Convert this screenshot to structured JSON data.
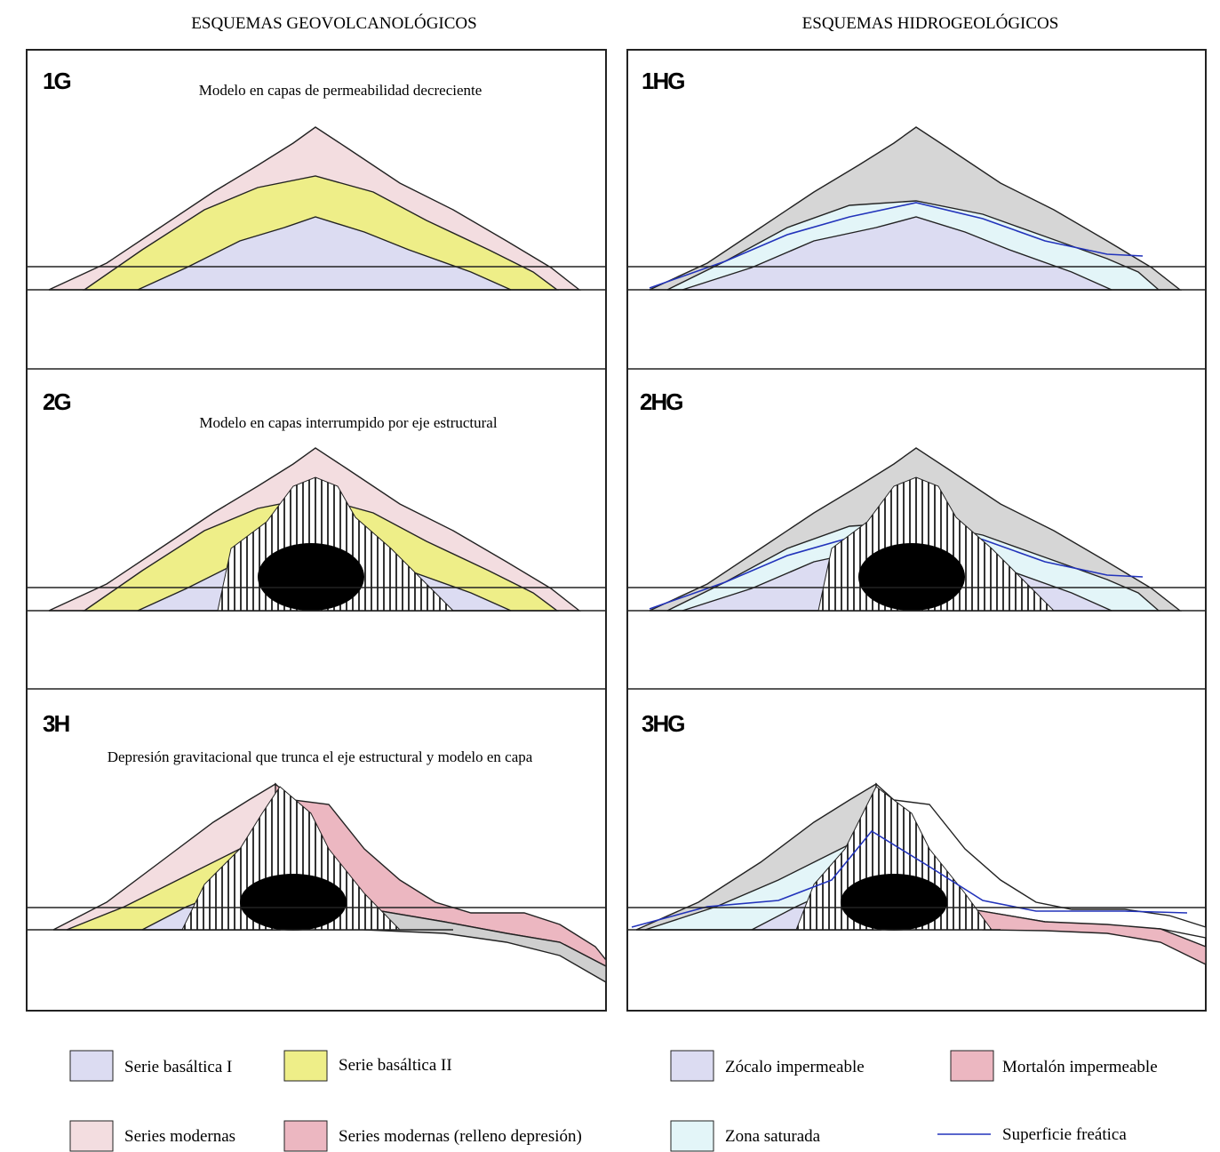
{
  "headers": {
    "left": "ESQUEMAS GEOVOLCANOLÓGICOS",
    "right": "ESQUEMAS HIDROGEOLÓGICOS"
  },
  "panels": [
    {
      "label": "1G",
      "caption": "Modelo en capas de permeabilidad decreciente"
    },
    {
      "label": "1HG"
    },
    {
      "label": "2G",
      "caption": "Modelo en capas interrumpido por eje estructural"
    },
    {
      "label": "2HG"
    },
    {
      "label": "3H",
      "caption": "Depresión gravitacional que trunca el eje estructural y modelo en capa"
    },
    {
      "label": "3HG"
    }
  ],
  "legend": [
    {
      "label": "Serie basáltica I"
    },
    {
      "label": "Serie basáltica II"
    },
    {
      "label": "Zócalo impermeable"
    },
    {
      "label": "Mortalón impermeable"
    },
    {
      "label": "Series modernas"
    },
    {
      "label": "Series modernas (relleno depresión)"
    },
    {
      "label": "Zona saturada"
    },
    {
      "label": "Superficie freática"
    }
  ]
}
